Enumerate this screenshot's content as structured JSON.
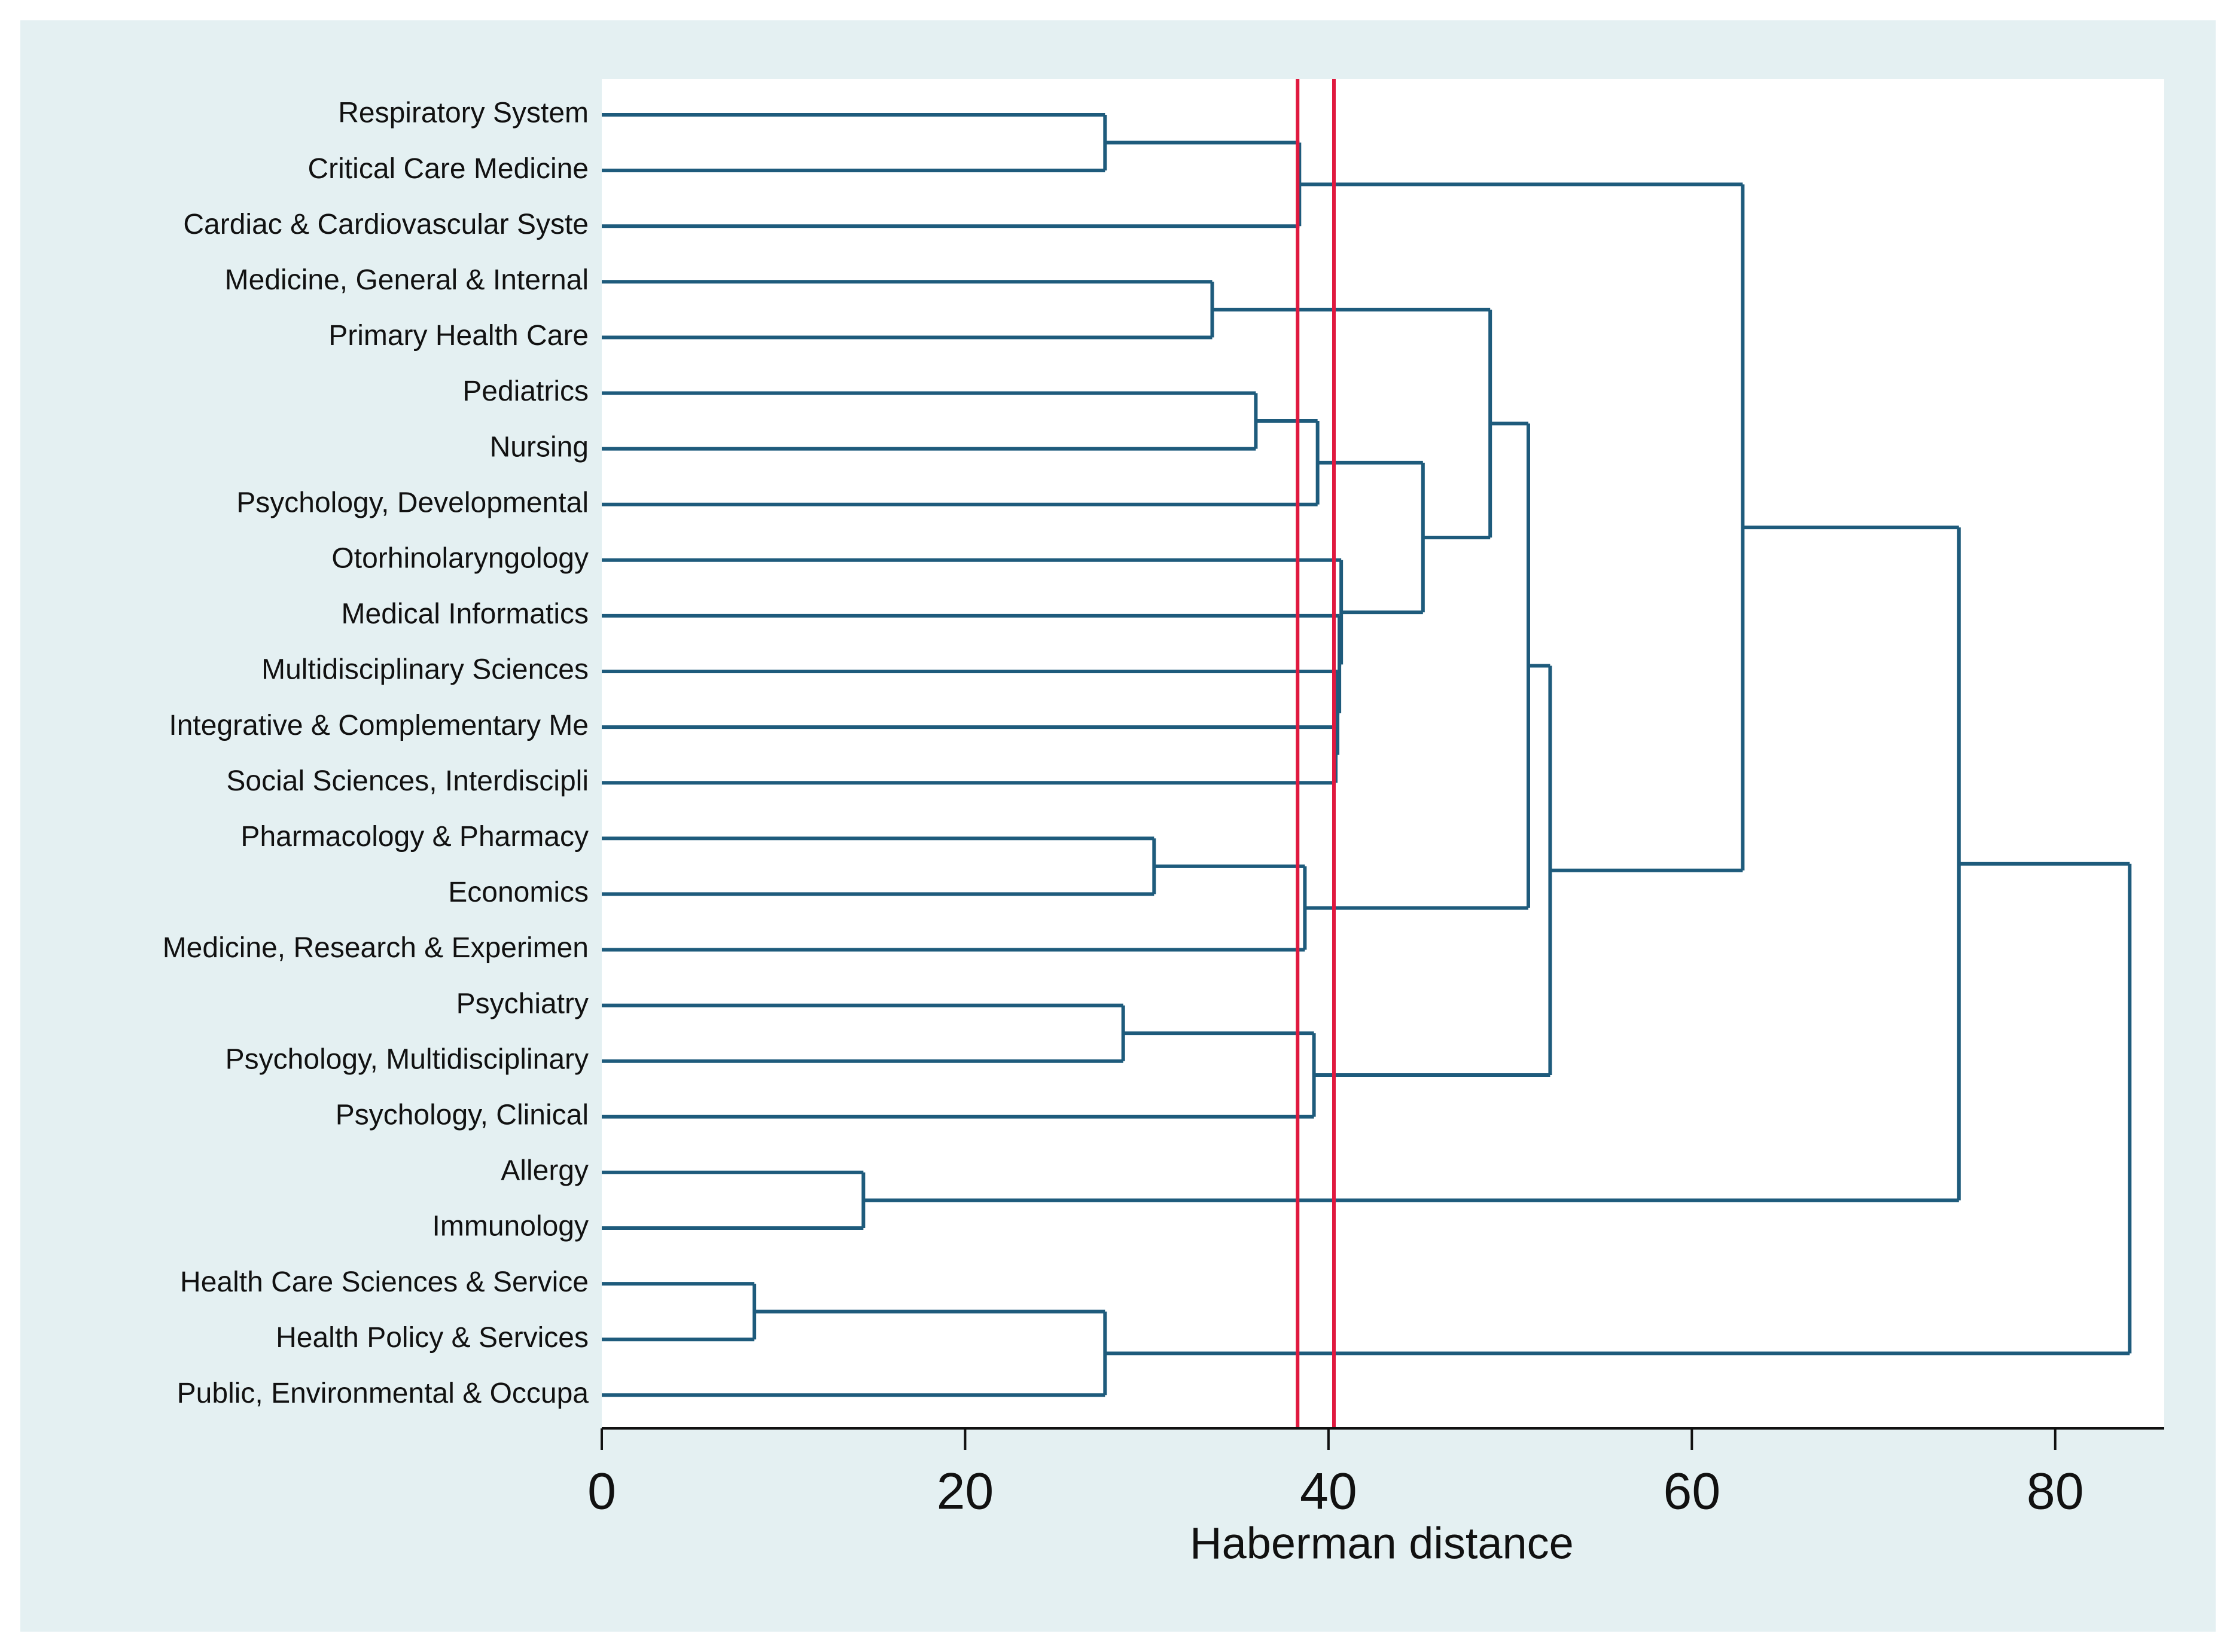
{
  "chart_data": {
    "type": "dendrogram",
    "leaves": [
      "Respiratory System",
      "Critical Care Medicine",
      "Cardiac & Cardiovascular Syste",
      "Medicine, General & Internal",
      "Primary Health Care",
      "Pediatrics",
      "Nursing",
      "Psychology, Developmental",
      "Otorhinolaryngology",
      "Medical Informatics",
      "Multidisciplinary Sciences",
      "Integrative & Complementary Me",
      "Social Sciences, Interdiscipli",
      "Pharmacology & Pharmacy",
      "Economics",
      "Medicine, Research & Experimen",
      "Psychiatry",
      "Psychology, Multidisciplinary",
      "Psychology, Clinical",
      "Allergy",
      "Immunology",
      "Health Care Sciences & Service",
      "Health Policy & Services",
      "Public, Environmental & Occupa"
    ],
    "merges": [
      {
        "children": [
          0,
          1
        ],
        "height": 27.7
      },
      {
        "children": [
          24,
          2
        ],
        "height": 38.4
      },
      {
        "children": [
          3,
          4
        ],
        "height": 33.6
      },
      {
        "children": [
          5,
          6
        ],
        "height": 36.0
      },
      {
        "children": [
          27,
          7
        ],
        "height": 39.4
      },
      {
        "children": [
          11,
          12
        ],
        "height": 40.4
      },
      {
        "children": [
          10,
          29
        ],
        "height": 40.5
      },
      {
        "children": [
          9,
          30
        ],
        "height": 40.6
      },
      {
        "children": [
          8,
          31
        ],
        "height": 40.7
      },
      {
        "children": [
          28,
          32
        ],
        "height": 45.2
      },
      {
        "children": [
          26,
          33
        ],
        "height": 48.9
      },
      {
        "children": [
          13,
          14
        ],
        "height": 30.4
      },
      {
        "children": [
          35,
          15
        ],
        "height": 38.7
      },
      {
        "children": [
          34,
          36
        ],
        "height": 51.0
      },
      {
        "children": [
          16,
          17
        ],
        "height": 28.7
      },
      {
        "children": [
          38,
          18
        ],
        "height": 39.2
      },
      {
        "children": [
          37,
          39
        ],
        "height": 52.2
      },
      {
        "children": [
          25,
          40
        ],
        "height": 62.8
      },
      {
        "children": [
          19,
          20
        ],
        "height": 14.4
      },
      {
        "children": [
          41,
          42
        ],
        "height": 74.7
      },
      {
        "children": [
          21,
          22
        ],
        "height": 8.4
      },
      {
        "children": [
          44,
          23
        ],
        "height": 27.7
      },
      {
        "children": [
          43,
          45
        ],
        "height": 84.1
      }
    ],
    "color": "#1e5b7c",
    "cut_lines": [
      38.3,
      40.3
    ],
    "cut_color": "#e0193f",
    "xlabel": "Haberman distance",
    "xlim": [
      0,
      86
    ],
    "xticks": [
      0,
      20,
      40,
      60,
      80
    ]
  }
}
